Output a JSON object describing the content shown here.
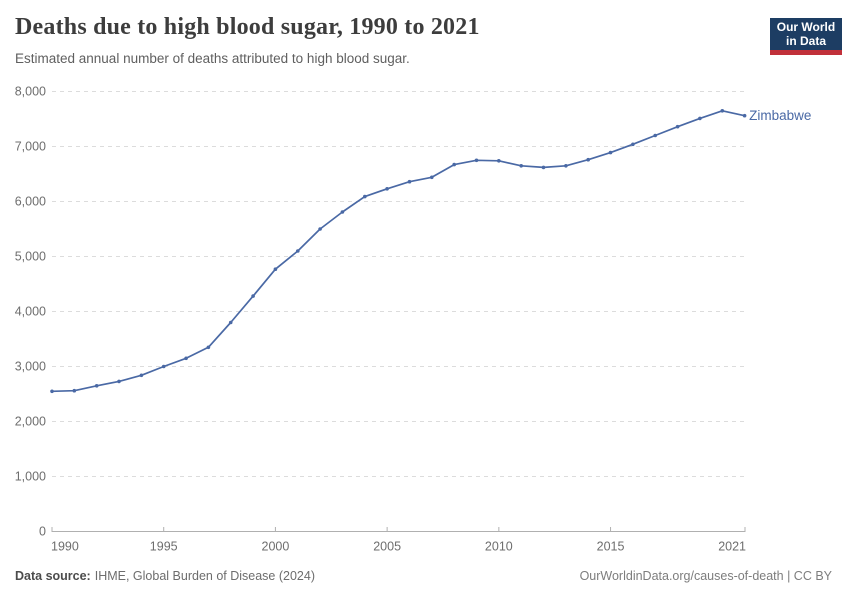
{
  "header": {
    "title": "Deaths due to high blood sugar, 1990 to 2021",
    "subtitle": "Estimated annual number of deaths attributed to high blood sugar."
  },
  "logo": {
    "line1": "Our World",
    "line2": "in Data",
    "bg_color": "#1d3d63",
    "bar_color": "#c1303a"
  },
  "footer": {
    "source_label": "Data source:",
    "source_text": "IHME, Global Burden of Disease (2024)",
    "rights": "OurWorldinData.org/causes-of-death | CC BY"
  },
  "chart_data": {
    "type": "line",
    "title": "Deaths due to high blood sugar, 1990 to 2021",
    "entity": "Zimbabwe",
    "line_color": "#4a69a5",
    "grid": "horizontal-dashed",
    "legend_position": "end-of-line-label",
    "x": [
      1990,
      1991,
      1992,
      1993,
      1994,
      1995,
      1996,
      1997,
      1998,
      1999,
      2000,
      2001,
      2002,
      2003,
      2004,
      2005,
      2006,
      2007,
      2008,
      2009,
      2010,
      2011,
      2012,
      2013,
      2014,
      2015,
      2016,
      2017,
      2018,
      2019,
      2020,
      2021
    ],
    "values": [
      2550,
      2560,
      2650,
      2730,
      2840,
      3000,
      3150,
      3350,
      3800,
      4280,
      4770,
      5100,
      5500,
      5810,
      6090,
      6230,
      6360,
      6440,
      6670,
      6750,
      6740,
      6650,
      6620,
      6650,
      6760,
      6890,
      7040,
      7200,
      7360,
      7510,
      7650,
      7560
    ],
    "x_ticks": [
      1990,
      1995,
      2000,
      2005,
      2010,
      2015,
      2021
    ],
    "y_ticks": [
      0,
      1000,
      2000,
      3000,
      4000,
      5000,
      6000,
      7000,
      8000
    ],
    "xlim": [
      1990,
      2021
    ],
    "ylim": [
      0,
      8000
    ],
    "colors": {
      "grid": "#dcdcdc",
      "axis": "#b0b0b0",
      "tick_label": "#6e6e6e"
    }
  }
}
